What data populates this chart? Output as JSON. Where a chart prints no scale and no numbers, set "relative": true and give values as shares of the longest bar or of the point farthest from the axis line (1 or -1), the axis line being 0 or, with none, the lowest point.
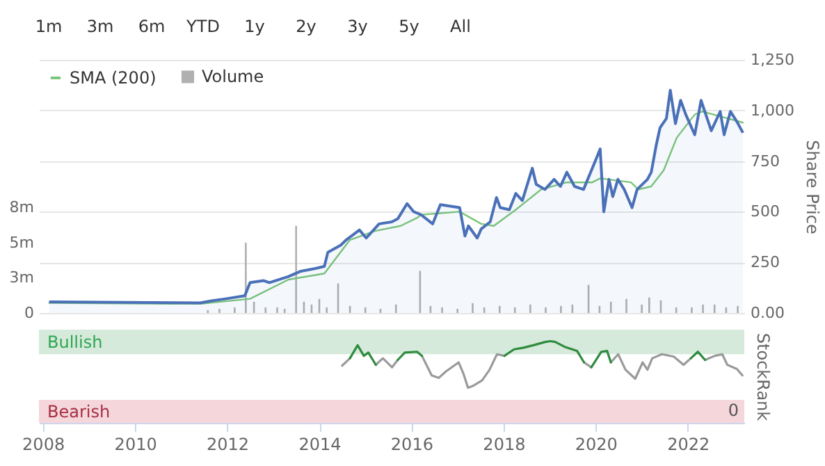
{
  "chart_data": [
    {
      "type": "line",
      "annotations": [
        "1m",
        "3m",
        "6m",
        "YTD",
        "1y",
        "2y",
        "3y",
        "5y",
        "All"
      ],
      "ylabel": "Share Price",
      "ylim": [
        0,
        1250
      ],
      "yticks": [
        {
          "value": 0,
          "label": "0.00"
        },
        250,
        500,
        750,
        {
          "value": 1000,
          "label": "1,000"
        },
        {
          "value": 1250,
          "label": "1,250"
        }
      ],
      "y2lim": [
        0,
        18
      ],
      "y2ticks": [
        0,
        {
          "value": 2.5,
          "label": "3m"
        },
        {
          "value": 5,
          "label": "5m"
        },
        {
          "value": 7.5,
          "label": "8m"
        }
      ],
      "grid": "y",
      "legend": "top left",
      "tick_labels": "y",
      "xlim": [
        "2007-12-01",
        "2023-03-25"
      ],
      "series": [
        {
          "name": "SMA (200)",
          "type": "line",
          "color": "#7cc67a",
          "x": [
            "2008-02-20",
            "2011-06",
            "2012-07",
            "2013-05",
            "2014-02-10",
            "2014-08-30",
            "2015-03-18",
            "2015-10-08",
            "2016-02-16",
            "2016-03-18",
            "2017-01-18",
            "2017-07-08",
            "2017-10-16",
            "2018-04-08",
            "2018-10-26",
            "2019-05-18",
            "2019-12-06",
            "2020-02-06",
            "2020-10-06",
            "2020-12-06",
            "2021-03-17",
            "2021-06-24",
            "2021-10-05",
            "2022-02-25",
            "2022-04-27",
            "2022-11-15",
            "2023-03-14"
          ],
          "values": [
            50,
            45,
            70,
            165,
            195,
            360,
            405,
            430,
            470,
            485,
            500,
            440,
            430,
            510,
            610,
            645,
            645,
            665,
            645,
            610,
            625,
            705,
            865,
            980,
            995,
            960,
            940
          ]
        },
        {
          "type": "area",
          "color": "#4a70b8",
          "x": [
            "2008-02-20",
            "2011-06",
            "2011-09",
            "2011-12-20",
            "2012-05-20",
            "2012-07",
            "2012-10-15",
            "2012-12",
            "2013-05",
            "2013-08",
            "2013-12",
            "2014-02-10",
            "2014-03-10",
            "2014-06-20",
            "2014-08",
            "2014-11-15",
            "2015-01-08",
            "2015-04-20",
            "2015-07-30",
            "2015-09-15",
            "2015-11-28",
            "2016-01-20",
            "2016-03-18",
            "2016-06-18",
            "2016-08-18",
            "2017-01-18",
            "2017-03-01",
            "2017-03-28",
            "2017-06-06",
            "2017-07-08",
            "2017-09-17",
            "2017-11-06",
            "2017-12-06",
            "2018-02-16",
            "2018-04-08",
            "2018-05-30",
            "2018-08-17",
            "2018-09-17",
            "2018-11-25",
            "2019-02-06",
            "2019-03-28",
            "2019-05-18",
            "2019-07-18",
            "2019-09-27",
            "2019-12-06",
            "2020-02-06",
            "2020-03-06",
            "2020-04-16",
            "2020-05-16",
            "2020-06-26",
            "2020-08-15",
            "2020-10-16",
            "2020-11-25",
            "2021-02-15",
            "2021-03-17",
            "2021-04-26",
            "2021-05-26",
            "2021-07-15",
            "2021-08-15",
            "2021-09-25",
            "2021-11-05",
            "2021-12-16",
            "2022-02-25",
            "2022-04-16",
            "2022-07-06",
            "2022-09-15",
            "2022-10-16",
            "2022-12-05",
            "2023-01-25",
            "2023-03-14"
          ],
          "values": [
            55,
            50,
            60,
            70,
            85,
            150,
            160,
            150,
            180,
            205,
            220,
            230,
            300,
            335,
            360,
            410,
            370,
            440,
            450,
            465,
            540,
            500,
            485,
            440,
            535,
            520,
            380,
            430,
            370,
            415,
            450,
            570,
            520,
            510,
            590,
            555,
            715,
            635,
            610,
            660,
            625,
            695,
            625,
            610,
            715,
            810,
            500,
            660,
            575,
            660,
            610,
            520,
            610,
            660,
            695,
            830,
            915,
            960,
            1100,
            935,
            1050,
            980,
            880,
            1050,
            900,
            995,
            880,
            995,
            945,
            890
          ]
        },
        {
          "name": "Volume",
          "type": "bar",
          "axis": "y2",
          "color": "#b0b0b0",
          "x": [
            "2011-08",
            "2011-11",
            "2012-03",
            "2012-05-28",
            "2012-08",
            "2012-11",
            "2013-02",
            "2013-04",
            "2013-07-01",
            "2013-09",
            "2013-11",
            "2014-01",
            "2014-03",
            "2014-05-30",
            "2014-09",
            "2015-01",
            "2015-05",
            "2015-09",
            "2016-03-10",
            "2016-06",
            "2016-09",
            "2017-01",
            "2017-05",
            "2017-08",
            "2017-12",
            "2018-04",
            "2018-08",
            "2018-12",
            "2019-04",
            "2019-07",
            "2019-11-06",
            "2020-02",
            "2020-05",
            "2020-09",
            "2021-01",
            "2021-03",
            "2021-06",
            "2021-10",
            "2022-02",
            "2022-05",
            "2022-08",
            "2022-11",
            "2023-02"
          ],
          "values": [
            0.2,
            0.3,
            0.4,
            5,
            0.8,
            0.4,
            0.4,
            0.3,
            6.2,
            0.8,
            0.6,
            1.0,
            0.4,
            2.1,
            0.5,
            0.4,
            0.3,
            0.6,
            3,
            0.5,
            0.4,
            0.3,
            0.7,
            0.4,
            0.5,
            0.4,
            0.6,
            0.4,
            0.5,
            0.6,
            2,
            0.5,
            0.8,
            1.0,
            0.6,
            1.1,
            0.9,
            0.4,
            0.4,
            0.6,
            0.6,
            0.4,
            0.5
          ]
        }
      ]
    },
    {
      "type": "line",
      "ylabel": "StockRank",
      "relative": true,
      "xlim": [
        "2007-12-01",
        "2023-03-25"
      ],
      "xticks": [
        "2008",
        "2010",
        "2012",
        "2014",
        "2016",
        "2018",
        "2020",
        "2022"
      ],
      "tick_labels": "x",
      "annotations": [
        {
          "text": "0",
          "y": 0
        }
      ],
      "bands": [
        {
          "axis": "y",
          "from": 0.84,
          "to": 1.14,
          "label": "Bullish",
          "color": "#d5eadb"
        },
        {
          "axis": "y",
          "from": 0,
          "to": 0.28,
          "label": "Bearish",
          "color": "#f4d6db"
        }
      ],
      "x": [
        "2014-07",
        "2014-09",
        "2014-11",
        "2014-12-20",
        "2015-01-25",
        "2015-03-25",
        "2015-05-20",
        "2015-08",
        "2015-09-15",
        "2015-11-10",
        "2016-02-15",
        "2016-03-25",
        "2016-06-10",
        "2016-08-05",
        "2016-10",
        "2017-01-10",
        "2017-02-15",
        "2017-03-25",
        "2017-05",
        "2017-07-15",
        "2017-09-12",
        "2017-11-10",
        "2018-01-08",
        "2018-03-25",
        "2018-06-10",
        "2018-08-25",
        "2018-11-28",
        "2019-01-08",
        "2019-02-15",
        "2019-05-01",
        "2019-08-07",
        "2019-10-01",
        "2019-11-28",
        "2020-02-15",
        "2020-04-01",
        "2020-05-01",
        "2020-06-28",
        "2020-08-25",
        "2020-11-10",
        "2021-01-08",
        "2021-02-15",
        "2021-03-25",
        "2021-06-10",
        "2021-09-12",
        "2021-11-28",
        "2022-01-25",
        "2022-03-22",
        "2022-05-18",
        "2022-08-03",
        "2022-10-01",
        "2022-11-10",
        "2023-01-25",
        "2023-03-10"
      ],
      "series": [
        {
          "color": "#9a9a9a",
          "values": [
            0.7,
            0.79,
            null,
            null,
            null,
            0.71,
            0.79,
            0.68,
            0.77,
            null,
            null,
            0.82,
            0.58,
            0.55,
            0.63,
            0.74,
            0.61,
            0.43,
            0.45,
            0.52,
            0.65,
            0.84,
            0.82,
            null,
            null,
            null,
            null,
            null,
            null,
            null,
            null,
            0.74,
            0.68,
            null,
            null,
            0.74,
            0.84,
            0.65,
            0.54,
            0.74,
            0.65,
            0.79,
            0.84,
            0.81,
            0.71,
            0.79,
            null,
            0.77,
            0.82,
            0.84,
            0.71,
            0.66,
            0.58
          ]
        },
        {
          "color": "#2e8b3e",
          "x": [
            "2014-09",
            "2014-11",
            "2014-12-20",
            "2015-01-25",
            "2015-03-25"
          ],
          "values": [
            0.79,
            0.95,
            0.82,
            0.86,
            0.71
          ]
        },
        {
          "color": "#2e8c3e",
          "x": [
            "2015-09-15",
            "2015-11-10",
            "2016-02-15",
            "2016-03-25"
          ],
          "values": [
            0.77,
            0.86,
            0.87,
            0.82
          ]
        },
        {
          "color": "#2f8b3e",
          "x": [
            "2018-01-08",
            "2018-03-25",
            "2018-06-10",
            "2018-08-25",
            "2018-11-28",
            "2019-01-08",
            "2019-02-15",
            "2019-05-01",
            "2019-08-07",
            "2019-10-01"
          ],
          "values": [
            0.82,
            0.9,
            0.92,
            0.95,
            0.99,
            1,
            0.99,
            0.93,
            0.88,
            0.74
          ]
        },
        {
          "color": "#2e8b3f",
          "x": [
            "2019-11-28",
            "2020-02-15",
            "2020-04-01",
            "2020-05-01"
          ],
          "values": [
            0.68,
            0.87,
            0.88,
            0.74
          ]
        },
        {
          "color": "#2d8b3e",
          "x": [
            "2022-01-25",
            "2022-03-22",
            "2022-05-18"
          ],
          "values": [
            0.79,
            0.87,
            0.77
          ]
        }
      ]
    }
  ]
}
